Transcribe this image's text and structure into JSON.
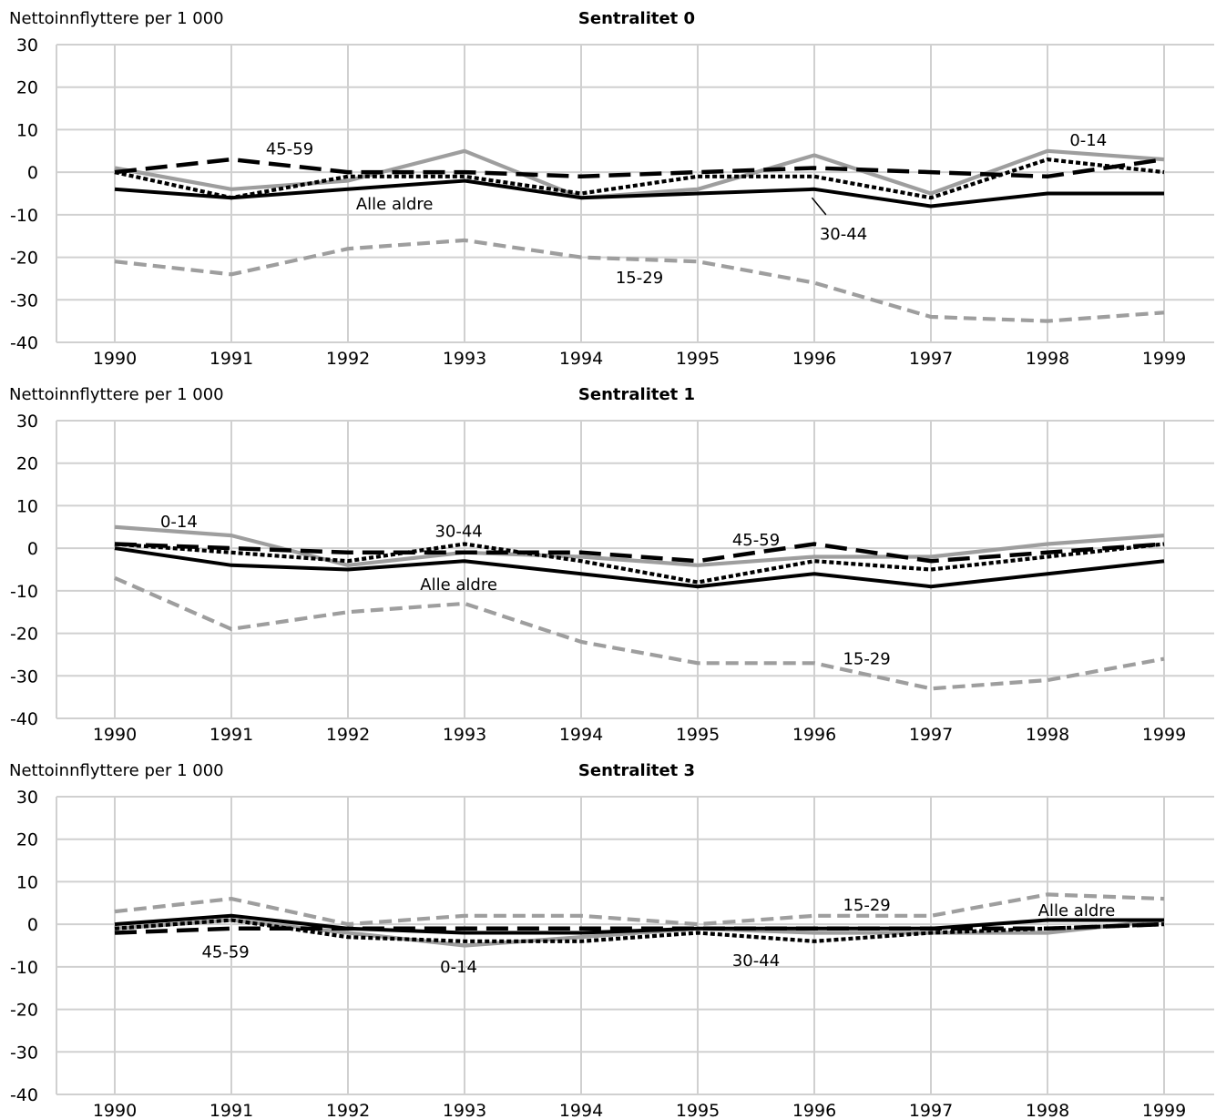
{
  "chart_data": [
    {
      "type": "line",
      "title": "Sentralitet 0",
      "ylabel": "Nettoinnflyttere per 1 000",
      "xlabel": "",
      "x": [
        1990,
        1991,
        1992,
        1993,
        1994,
        1995,
        1996,
        1997,
        1998,
        1999
      ],
      "ylim": [
        -40,
        30
      ],
      "yticks": [
        30,
        20,
        10,
        0,
        -10,
        -20,
        -30,
        -40
      ],
      "grid": true,
      "series": [
        {
          "name": "0-14",
          "values": [
            1,
            -4,
            -2,
            5,
            -6,
            -4,
            4,
            -5,
            5,
            3
          ],
          "color": "#9e9e9e",
          "style": "solid"
        },
        {
          "name": "15-29",
          "values": [
            -21,
            -24,
            -18,
            -16,
            -20,
            -21,
            -26,
            -34,
            -35,
            -33
          ],
          "color": "#9e9e9e",
          "style": "dashed"
        },
        {
          "name": "30-44",
          "values": [
            0,
            -6,
            -1,
            -1,
            -5,
            -1,
            -1,
            -6,
            3,
            0
          ],
          "color": "#000000",
          "style": "dotted"
        },
        {
          "name": "45-59",
          "values": [
            0,
            3,
            0,
            0,
            -1,
            0,
            1,
            0,
            -1,
            3
          ],
          "color": "#000000",
          "style": "longdash"
        },
        {
          "name": "Alle aldre",
          "values": [
            -4,
            -6,
            -4,
            -2,
            -6,
            -5,
            -4,
            -8,
            -5,
            -5
          ],
          "color": "#000000",
          "style": "solid"
        }
      ],
      "annotations": [
        {
          "text": "45-59",
          "x": 1991.5,
          "y": 5.5
        },
        {
          "text": "Alle aldre",
          "x": 1992.4,
          "y": -7.5
        },
        {
          "text": "0-14",
          "x": 1998.35,
          "y": 7.5
        },
        {
          "text": "30-44",
          "x": 1996.25,
          "y": -14.5
        },
        {
          "text": "15-29",
          "x": 1994.5,
          "y": -24.8
        }
      ]
    },
    {
      "type": "line",
      "title": "Sentralitet 1",
      "ylabel": "Nettoinnflyttere per 1 000",
      "xlabel": "",
      "x": [
        1990,
        1991,
        1992,
        1993,
        1994,
        1995,
        1996,
        1997,
        1998,
        1999
      ],
      "ylim": [
        -40,
        30
      ],
      "yticks": [
        30,
        20,
        10,
        0,
        -10,
        -20,
        -30,
        -40
      ],
      "grid": true,
      "series": [
        {
          "name": "0-14",
          "values": [
            5,
            3,
            -4,
            -1,
            -2,
            -4,
            -2,
            -2,
            1,
            3
          ],
          "color": "#9e9e9e",
          "style": "solid"
        },
        {
          "name": "15-29",
          "values": [
            -7,
            -19,
            -15,
            -13,
            -22,
            -27,
            -27,
            -33,
            -31,
            -26
          ],
          "color": "#9e9e9e",
          "style": "dashed"
        },
        {
          "name": "30-44",
          "values": [
            1,
            -1,
            -3,
            1,
            -3,
            -8,
            -3,
            -5,
            -2,
            1
          ],
          "color": "#000000",
          "style": "dotted"
        },
        {
          "name": "45-59",
          "values": [
            1,
            0,
            -1,
            -1,
            -1,
            -3,
            1,
            -3,
            -1,
            1
          ],
          "color": "#000000",
          "style": "longdash"
        },
        {
          "name": "Alle aldre",
          "values": [
            0,
            -4,
            -5,
            -3,
            -6,
            -9,
            -6,
            -9,
            -6,
            -3
          ],
          "color": "#000000",
          "style": "solid"
        }
      ],
      "annotations": [
        {
          "text": "0-14",
          "x": 1990.55,
          "y": 6.2
        },
        {
          "text": "30-44",
          "x": 1992.95,
          "y": 4
        },
        {
          "text": "45-59",
          "x": 1995.5,
          "y": 2
        },
        {
          "text": "Alle aldre",
          "x": 1992.95,
          "y": -8.5
        },
        {
          "text": "15-29",
          "x": 1996.45,
          "y": -26
        }
      ]
    },
    {
      "type": "line",
      "title": "Sentralitet 3",
      "ylabel": "Nettoinnflyttere per 1 000",
      "xlabel": "",
      "x": [
        1990,
        1991,
        1992,
        1993,
        1994,
        1995,
        1996,
        1997,
        1998,
        1999
      ],
      "ylim": [
        -40,
        30
      ],
      "yticks": [
        30,
        20,
        10,
        0,
        -10,
        -20,
        -30,
        -40
      ],
      "grid": true,
      "series": [
        {
          "name": "0-14",
          "values": [
            -1,
            1,
            -2,
            -5,
            -3,
            -1,
            -2,
            -2,
            -2,
            1
          ],
          "color": "#9e9e9e",
          "style": "solid"
        },
        {
          "name": "15-29",
          "values": [
            3,
            6,
            0,
            2,
            2,
            0,
            2,
            2,
            7,
            6
          ],
          "color": "#9e9e9e",
          "style": "dashed"
        },
        {
          "name": "30-44",
          "values": [
            -1,
            1,
            -3,
            -4,
            -4,
            -2,
            -4,
            -2,
            -1,
            0
          ],
          "color": "#000000",
          "style": "dotted"
        },
        {
          "name": "45-59",
          "values": [
            -2,
            -1,
            -1,
            -1,
            -1,
            -1,
            -1,
            -1,
            -1,
            0
          ],
          "color": "#000000",
          "style": "longdash"
        },
        {
          "name": "Alle aldre",
          "values": [
            0,
            2,
            -1,
            -2,
            -2,
            -1,
            -1,
            -1,
            1,
            1
          ],
          "color": "#000000",
          "style": "solid"
        }
      ],
      "annotations": [
        {
          "text": "45-59",
          "x": 1990.95,
          "y": -6.5
        },
        {
          "text": "0-14",
          "x": 1992.95,
          "y": -10
        },
        {
          "text": "15-29",
          "x": 1996.45,
          "y": 4.5
        },
        {
          "text": "30-44",
          "x": 1995.5,
          "y": -8.5
        },
        {
          "text": "Alle aldre",
          "x": 1998.25,
          "y": 3.2
        }
      ]
    }
  ]
}
